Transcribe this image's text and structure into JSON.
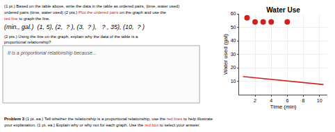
{
  "chart_data": {
    "type": "line",
    "title": "Water Use",
    "xlabel": "Time (min)",
    "ylabel": "Water used (gal)",
    "xlim": [
      0,
      11
    ],
    "ylim": [
      0,
      60
    ],
    "xticks": [
      2,
      4,
      6,
      8,
      10
    ],
    "yticks": [
      10,
      20,
      30,
      40,
      50,
      60
    ],
    "grid": true,
    "series": [
      {
        "type": "line",
        "color": "#cc2222",
        "x": [
          0.5,
          10.5
        ],
        "values": [
          13.5,
          7.5
        ]
      },
      {
        "type": "scatter",
        "color": "#cc2222",
        "x": [
          1,
          2,
          3,
          4,
          6
        ],
        "values": [
          57,
          54,
          54,
          54,
          54
        ]
      }
    ],
    "annotations": [
      [
        {
          "text": "(1 pt.) Based on the table above, write the data in the table as ordered pairs, (time, water used)"
        }
      ],
      [
        {
          "text": "ordered pairs (time, water used) (2 pts.) "
        },
        {
          "text": "Plot the ordered pairs",
          "color": "#cc2222"
        },
        {
          "text": " on the graph and use the"
        }
      ],
      [
        {
          "text": "red line",
          "color": "#cc2222"
        },
        {
          "text": " to graph the line."
        }
      ],
      [
        {
          "text": "(min., gal.)  (1, 5), (2, "
        },
        {
          "text": " ? "
        },
        {
          "text": "), (3, "
        },
        {
          "text": " ? "
        },
        {
          "text": "),  "
        },
        {
          "text": " ? "
        },
        {
          "text": ", 35), (10, "
        },
        {
          "text": " ? "
        },
        {
          "text": ")"
        }
      ],
      [
        {
          "text": "(2 pts.) Using the line on the graph, explain why the data of the table is a"
        }
      ],
      [
        {
          "text": "proportional relationship?"
        }
      ],
      [
        {
          "text": "It is a proportional relationship because..."
        }
      ],
      [
        {
          "text": "Problem 3"
        },
        {
          "text": " (1 pt. ea.) Tell whether the relationship is a proportional relationship, use the "
        },
        {
          "text": "red lines",
          "color": "#cc2222"
        },
        {
          "text": " to help illustrate"
        }
      ],
      [
        {
          "text": "your explanation. (1 pt. ea.) Explain why or why not for each graph. Use the "
        },
        {
          "text": "red box",
          "color": "#cc2222"
        },
        {
          "text": " to select your answer."
        }
      ]
    ]
  }
}
